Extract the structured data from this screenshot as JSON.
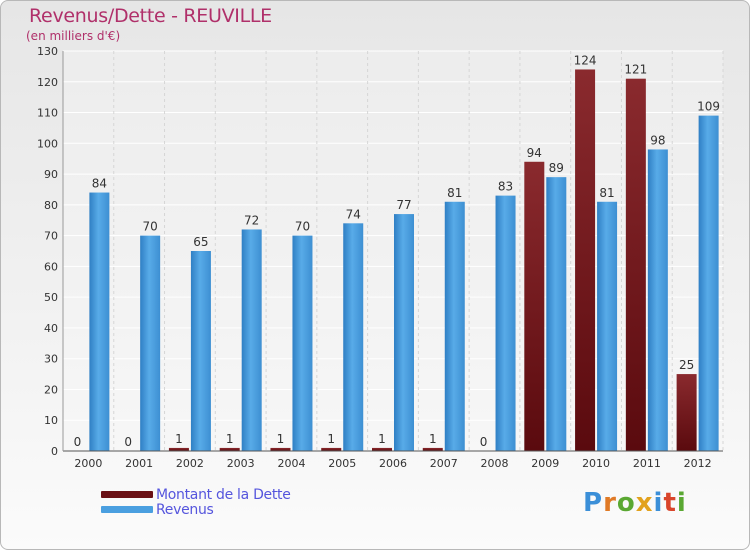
{
  "chart_data": {
    "type": "bar",
    "title": "Revenus/Dette - REUVILLE",
    "subtitle": "(en milliers d'€)",
    "categories": [
      "2000",
      "2001",
      "2002",
      "2003",
      "2004",
      "2005",
      "2006",
      "2007",
      "2008",
      "2009",
      "2010",
      "2011",
      "2012"
    ],
    "series": [
      {
        "name": "Montant de la Dette",
        "color": "#7a1519",
        "values": [
          0,
          0,
          1,
          1,
          1,
          1,
          1,
          1,
          0,
          94,
          124,
          121,
          25
        ]
      },
      {
        "name": "Revenus",
        "color": "#4a9fe0",
        "values": [
          84,
          70,
          65,
          72,
          70,
          74,
          77,
          81,
          83,
          89,
          81,
          98,
          109
        ]
      }
    ],
    "ylim": [
      0,
      130
    ],
    "yticks": [
      0,
      10,
      20,
      30,
      40,
      50,
      60,
      70,
      80,
      90,
      100,
      110,
      120,
      130
    ],
    "grid": true,
    "legend_position": "bottom-left"
  },
  "brand": {
    "letters": [
      "P",
      "r",
      "o",
      "x",
      "i",
      "t",
      "i"
    ],
    "colors": [
      "#3b8fd8",
      "#e07a26",
      "#5aa832",
      "#e2a21e",
      "#3b8fd8",
      "#d9452b",
      "#5aa832"
    ]
  }
}
